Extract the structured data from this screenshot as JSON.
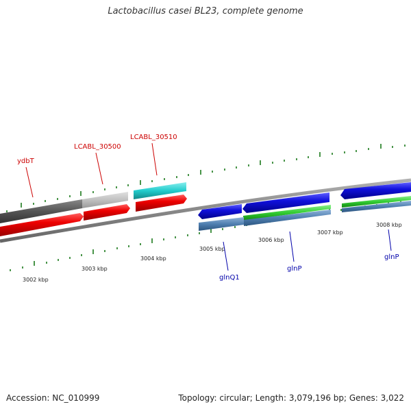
{
  "title": "Lactobacillus casei BL23, complete genome",
  "footer": {
    "accession": "Accession: NC_010999",
    "topology": "Topology: circular; Length: 3,079,196 bp; Genes: 3,022"
  },
  "kbp_labels": [
    "3002 kbp",
    "3003 kbp",
    "3004 kbp",
    "3005 kbp",
    "3006 kbp",
    "3007 kbp",
    "3008 kbp"
  ],
  "gene_labels": {
    "ydbT": "ydbT",
    "lcabl_30500": "LCABL_30500",
    "lcabl_30510": "LCABL_30510",
    "glnQ1": "glnQ1",
    "glnP_1": "glnP",
    "glnP_2": "glnP"
  },
  "colors": {
    "forward_label": "#cc0000",
    "reverse_label": "#0000aa",
    "tick": "#1a7a1a",
    "red_feature": "#ee0000",
    "cyan_feature": "#22cccc",
    "blue_feature": "#1111dd",
    "green_feature": "#33cc33",
    "steel_feature": "#4f7fb0"
  }
}
